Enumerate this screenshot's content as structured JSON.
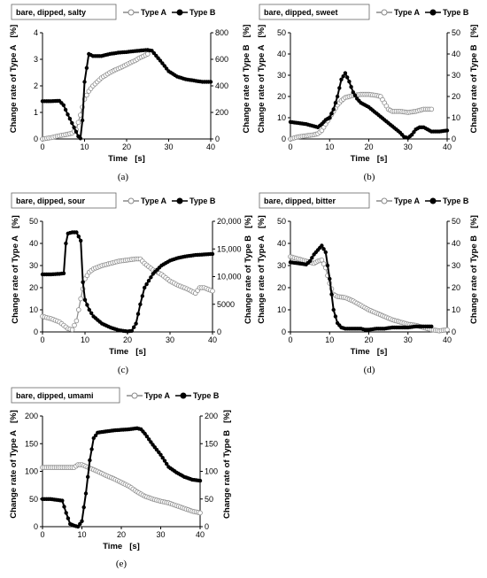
{
  "colors": {
    "type_a": "#8a8a8a",
    "type_b": "#000000"
  },
  "chart_data": [
    {
      "type": "line",
      "title": "bare, dipped, salty",
      "xlabel": "Time",
      "xunit": "[s]",
      "ylabel_left": "Change rate of Type A",
      "ylabel_right": "Change rate of Type B",
      "yunit": "[%]",
      "caption": "(a)",
      "xlim": [
        0,
        40
      ],
      "xticks": [
        0,
        10,
        20,
        30,
        40
      ],
      "ylim_left": [
        0,
        4
      ],
      "yticks_left": [
        0,
        1,
        2,
        3,
        4
      ],
      "ylim_right": [
        0,
        800
      ],
      "yticks_right": [
        0,
        200,
        400,
        600,
        800
      ],
      "grid": false,
      "legend": "top-right",
      "series": [
        {
          "name": "Type A",
          "axis": "left",
          "marker": "hollow",
          "x": [
            0,
            2,
            4,
            6,
            7,
            8,
            9,
            10,
            11,
            12,
            13,
            14,
            15,
            16,
            17,
            18,
            19,
            20,
            21,
            22,
            23,
            24,
            25
          ],
          "y": [
            0,
            0.05,
            0.12,
            0.18,
            0.22,
            0.35,
            0.9,
            1.5,
            1.8,
            2.0,
            2.15,
            2.3,
            2.4,
            2.5,
            2.58,
            2.65,
            2.72,
            2.8,
            2.88,
            2.95,
            3.05,
            3.12,
            3.2
          ]
        },
        {
          "name": "Type B",
          "axis": "right",
          "marker": "filled",
          "x": [
            0,
            2,
            4,
            5,
            6,
            7,
            8,
            8.5,
            9,
            9.5,
            10,
            11,
            12,
            14,
            16,
            18,
            20,
            22,
            24,
            25,
            26,
            28,
            30,
            32,
            34,
            36,
            38,
            40
          ],
          "y": [
            285,
            285,
            287,
            255,
            185,
            120,
            55,
            20,
            5,
            140,
            430,
            640,
            625,
            625,
            640,
            650,
            655,
            662,
            668,
            670,
            665,
            590,
            510,
            470,
            450,
            440,
            430,
            430
          ]
        }
      ]
    },
    {
      "type": "line",
      "title": "bare, dipped, sweet",
      "xlabel": "Time",
      "xunit": "[s]",
      "ylabel_left": "Change rate of Type A",
      "ylabel_right": "Change rate of Type B",
      "yunit": "[%]",
      "caption": "(b)",
      "xlim": [
        0,
        40
      ],
      "xticks": [
        0,
        10,
        20,
        30,
        40
      ],
      "ylim_left": [
        0,
        50
      ],
      "yticks_left": [
        0,
        10,
        20,
        30,
        40,
        50
      ],
      "ylim_right": [
        0,
        50
      ],
      "yticks_right": [
        0,
        10,
        20,
        30,
        40,
        50
      ],
      "grid": false,
      "legend": "top-right",
      "series": [
        {
          "name": "Type A",
          "axis": "left",
          "marker": "hollow",
          "x": [
            0,
            2,
            4,
            6,
            7,
            8,
            9,
            10,
            11,
            12,
            13,
            14,
            16,
            18,
            20,
            22,
            23,
            24,
            25,
            26,
            27,
            28,
            30,
            32,
            34,
            36
          ],
          "y": [
            0,
            1,
            1.5,
            2,
            2.5,
            4,
            7,
            10,
            13,
            16,
            18,
            19.5,
            20.5,
            21,
            21,
            20.5,
            20,
            17,
            14,
            13,
            13,
            13,
            12.5,
            13,
            14,
            14
          ]
        },
        {
          "name": "Type B",
          "axis": "right",
          "marker": "filled",
          "x": [
            0,
            2,
            4,
            6,
            7,
            8,
            9,
            10,
            11,
            12,
            13,
            14,
            15,
            16,
            17,
            18,
            20,
            22,
            24,
            26,
            28,
            29,
            30,
            31,
            32,
            33,
            34,
            36,
            38,
            40
          ],
          "y": [
            8,
            7.5,
            7,
            6,
            5.5,
            7,
            9,
            10,
            14,
            20,
            28,
            31,
            27,
            22,
            19,
            17,
            15,
            12,
            9,
            6,
            3,
            1,
            0.5,
            2,
            4.5,
            5.5,
            5.5,
            3.5,
            3.5,
            4
          ]
        }
      ]
    },
    {
      "type": "line",
      "title": "bare, dipped, sour",
      "xlabel": "Time",
      "xunit": "[s]",
      "ylabel_left": "Change rate of Type A",
      "ylabel_right": "Change rate of Type B",
      "yunit": "[%]",
      "caption": "(c)",
      "xlim": [
        0,
        40
      ],
      "xticks": [
        0,
        10,
        20,
        30,
        40
      ],
      "ylim_left": [
        0,
        50
      ],
      "yticks_left": [
        0,
        10,
        20,
        30,
        40,
        50
      ],
      "ylim_right": [
        0,
        20000
      ],
      "yticks_right": [
        0,
        5000,
        10000,
        15000,
        20000
      ],
      "ytick_labels_right": [
        "0",
        "5000",
        "10,000",
        "15,000",
        "20,000"
      ],
      "grid": false,
      "legend": "top-right",
      "series": [
        {
          "name": "Type A",
          "axis": "left",
          "marker": "hollow",
          "x": [
            0,
            2,
            4,
            5,
            6,
            7,
            8,
            9,
            10,
            11,
            12,
            14,
            16,
            18,
            20,
            22,
            23,
            24,
            26,
            28,
            30,
            32,
            34,
            36,
            37,
            38,
            40
          ],
          "y": [
            7,
            6,
            4.5,
            3,
            1.5,
            1,
            5,
            15,
            24,
            27,
            28.5,
            30,
            31,
            32,
            32.5,
            33,
            33,
            31,
            28,
            26,
            23,
            21,
            19.5,
            17.5,
            20,
            20,
            18.5
          ]
        },
        {
          "name": "Type B",
          "axis": "right",
          "marker": "filled",
          "x": [
            0,
            2,
            4,
            5,
            5.5,
            6,
            7,
            8,
            9,
            9.5,
            10,
            11,
            12,
            14,
            16,
            18,
            20,
            21,
            22,
            23,
            24,
            26,
            28,
            30,
            32,
            34,
            36,
            38,
            40
          ],
          "y": [
            10400,
            10400,
            10500,
            10600,
            16000,
            17800,
            18000,
            18000,
            16500,
            9000,
            5800,
            4000,
            2800,
            1500,
            800,
            300,
            100,
            200,
            1500,
            5000,
            8000,
            10500,
            12000,
            12900,
            13400,
            13700,
            13900,
            14000,
            14100
          ]
        }
      ]
    },
    {
      "type": "line",
      "title": "bare, dipped, bitter",
      "xlabel": "Time",
      "xunit": "[s]",
      "ylabel_left": "Change rate of Type A",
      "ylabel_right": "Change rate of Type B",
      "yunit": "[%]",
      "caption": "(d)",
      "xlim": [
        0,
        40
      ],
      "xticks": [
        0,
        10,
        20,
        30,
        40
      ],
      "ylim_left": [
        0,
        50
      ],
      "yticks_left": [
        0,
        10,
        20,
        30,
        40,
        50
      ],
      "ylim_right": [
        0,
        50
      ],
      "yticks_right": [
        0,
        10,
        20,
        30,
        40,
        50
      ],
      "grid": false,
      "legend": "top-right",
      "series": [
        {
          "name": "Type A",
          "axis": "left",
          "marker": "hollow",
          "x": [
            0,
            2,
            4,
            6,
            7,
            8,
            9,
            10,
            11,
            12,
            14,
            16,
            18,
            20,
            22,
            24,
            26,
            28,
            30,
            32,
            34,
            36,
            38,
            40
          ],
          "y": [
            34,
            33,
            32,
            31,
            32,
            32.5,
            29,
            22,
            17,
            16,
            15.5,
            14,
            12,
            10,
            8.5,
            7,
            5.5,
            4.5,
            3.5,
            3,
            2,
            1,
            0.5,
            1
          ]
        },
        {
          "name": "Type B",
          "axis": "right",
          "marker": "filled",
          "x": [
            0,
            2,
            4,
            5,
            6,
            7,
            8,
            9,
            10,
            11,
            12,
            13,
            14,
            16,
            18,
            19,
            20,
            22,
            24,
            26,
            28,
            30,
            32,
            34,
            36
          ],
          "y": [
            31.5,
            31,
            30.5,
            32,
            35,
            37,
            39,
            36,
            24,
            10,
            4,
            2,
            1.5,
            1.5,
            1.5,
            1,
            1,
            1.5,
            1.5,
            2,
            2,
            2,
            2.5,
            2.5,
            2.5
          ]
        }
      ]
    },
    {
      "type": "line",
      "title": "bare, dipped, umami",
      "xlabel": "Time",
      "xunit": "[s]",
      "ylabel_left": "Change rate of Type A",
      "ylabel_right": "Change rate of Type B",
      "yunit": "[%]",
      "caption": "(e)",
      "xlim": [
        0,
        40
      ],
      "xticks": [
        0,
        10,
        20,
        30,
        40
      ],
      "ylim_left": [
        0,
        200
      ],
      "yticks_left": [
        0,
        50,
        100,
        150,
        200
      ],
      "ylim_right": [
        0,
        200
      ],
      "yticks_right": [
        0,
        50,
        100,
        150,
        200
      ],
      "grid": false,
      "legend": "top-right",
      "series": [
        {
          "name": "Type A",
          "axis": "left",
          "marker": "hollow",
          "x": [
            0,
            2,
            4,
            6,
            8,
            9,
            10,
            11,
            12,
            14,
            16,
            18,
            20,
            22,
            24,
            26,
            28,
            30,
            32,
            34,
            36,
            38,
            40
          ],
          "y": [
            107,
            107,
            107,
            107,
            107,
            112,
            112,
            109,
            106,
            100,
            93,
            87,
            80,
            73,
            63,
            55,
            50,
            46,
            43,
            38,
            33,
            28,
            25
          ]
        },
        {
          "name": "Type B",
          "axis": "right",
          "marker": "filled",
          "x": [
            0,
            2,
            4,
            5,
            6,
            7,
            8,
            9,
            10,
            11,
            12,
            13,
            14,
            16,
            18,
            20,
            22,
            24,
            25,
            26,
            28,
            30,
            32,
            34,
            36,
            38,
            40
          ],
          "y": [
            50,
            50,
            48,
            47,
            25,
            5,
            2,
            0,
            10,
            60,
            120,
            160,
            170,
            172,
            174,
            175,
            176,
            178,
            176,
            168,
            148,
            130,
            108,
            98,
            90,
            85,
            83
          ]
        }
      ]
    }
  ]
}
